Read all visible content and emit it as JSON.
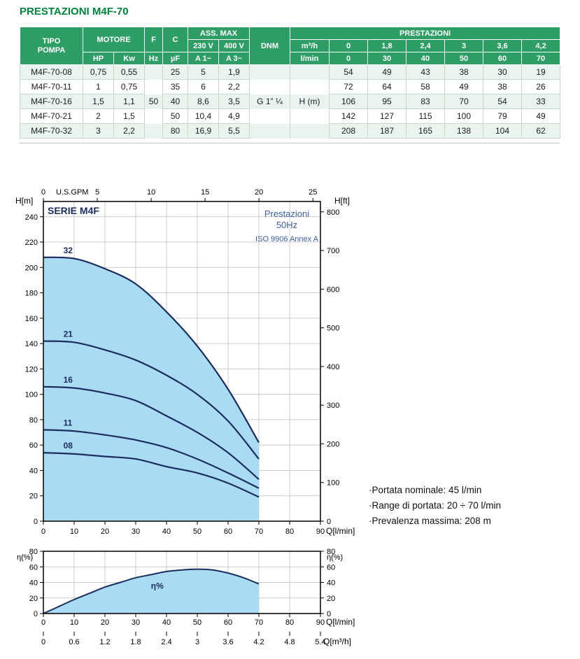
{
  "page": {
    "title": "PRESTAZIONI M4F-70"
  },
  "table": {
    "header": {
      "tipo_pompa": "TIPO\nPOMPA",
      "motore": "MOTORE",
      "hp": "HP",
      "kw": "Kw",
      "f": "F",
      "hz": "Hz",
      "c": "C",
      "uf": "µF",
      "ass_max": "ASS. MAX",
      "v230": "230 V",
      "v400": "400 V",
      "a1": "A 1~",
      "a3": "A 3~",
      "dnm": "DNM",
      "prestazioni": "PRESTAZIONI",
      "m3h": "m³/h",
      "lmin": "l/min",
      "m3h_vals": [
        "0",
        "1,8",
        "2,4",
        "3",
        "3,6",
        "4,2"
      ],
      "lmin_vals": [
        "0",
        "30",
        "40",
        "50",
        "60",
        "70"
      ]
    },
    "shared": {
      "hz": "50",
      "dnm": "G 1” ¼",
      "unit": "H (m)"
    },
    "rows": [
      {
        "tipo": "M4F-70-08",
        "hp": "0,75",
        "kw": "0,55",
        "c": "25",
        "a230": "5",
        "a400": "1,9",
        "vals": [
          "54",
          "49",
          "43",
          "38",
          "30",
          "19"
        ]
      },
      {
        "tipo": "M4F-70-11",
        "hp": "1",
        "kw": "0,75",
        "c": "35",
        "a230": "6",
        "a400": "2,2",
        "vals": [
          "72",
          "64",
          "58",
          "49",
          "38",
          "26"
        ]
      },
      {
        "tipo": "M4F-70-16",
        "hp": "1,5",
        "kw": "1,1",
        "c": "40",
        "a230": "8,6",
        "a400": "3,5",
        "vals": [
          "106",
          "95",
          "83",
          "70",
          "54",
          "33"
        ]
      },
      {
        "tipo": "M4F-70-21",
        "hp": "2",
        "kw": "1,5",
        "c": "50",
        "a230": "10,4",
        "a400": "4,9",
        "vals": [
          "142",
          "127",
          "115",
          "100",
          "79",
          "49"
        ]
      },
      {
        "tipo": "M4F-70-32",
        "hp": "3",
        "kw": "2,2",
        "c": "80",
        "a230": "16,9",
        "a400": "5,5",
        "vals": [
          "208",
          "187",
          "165",
          "138",
          "104",
          "62"
        ]
      }
    ]
  },
  "notes": [
    "·Portata nominale: 45 l/min",
    "·Range di portata: 20 ÷ 70 l/min",
    "·Prevalenza massima: 208 m"
  ],
  "colors": {
    "header_green": "#2f9e66",
    "title_green": "#00843d",
    "curve_navy": "#1b2d5e",
    "fill_blue": "#a9dcf2",
    "annot_blue": "#3b5fa5",
    "grid_gray": "#cccccc"
  },
  "chart_data": [
    {
      "type": "line",
      "title": "SERIE M4F",
      "annotations": [
        "Prestazioni",
        "50Hz",
        "ISO 9906 Annex A"
      ],
      "xlabel": "Q[l/min]",
      "ylabel_left": "H[m]",
      "ylabel_right": "H[ft]",
      "top_axis_label": "U.S.GPM",
      "x_max": 90,
      "y_max": 252,
      "x_ticks": [
        0,
        10,
        20,
        30,
        40,
        50,
        60,
        70,
        80,
        90
      ],
      "y_ticks": [
        0,
        20,
        40,
        60,
        80,
        100,
        120,
        140,
        160,
        180,
        200,
        220,
        240
      ],
      "ft_ticks": [
        0,
        100,
        200,
        300,
        400,
        500,
        600,
        700,
        800
      ],
      "ft_to_m": 0.3048,
      "gpm_ticks": [
        0,
        5,
        10,
        15,
        20,
        25
      ],
      "gpm_max": 25.7,
      "series": [
        {
          "name": "32",
          "x": [
            0,
            10,
            20,
            30,
            40,
            50,
            60,
            70
          ],
          "y": [
            208,
            207,
            199,
            187,
            165,
            138,
            104,
            62
          ]
        },
        {
          "name": "21",
          "x": [
            0,
            10,
            20,
            30,
            40,
            50,
            60,
            70
          ],
          "y": [
            142,
            141,
            135,
            127,
            115,
            100,
            79,
            49
          ]
        },
        {
          "name": "16",
          "x": [
            0,
            10,
            20,
            30,
            40,
            50,
            60,
            70
          ],
          "y": [
            106,
            105,
            101,
            95,
            83,
            70,
            54,
            33
          ]
        },
        {
          "name": "11",
          "x": [
            0,
            10,
            20,
            30,
            40,
            50,
            60,
            70
          ],
          "y": [
            72,
            71,
            68,
            64,
            58,
            49,
            38,
            26
          ]
        },
        {
          "name": "08",
          "x": [
            0,
            10,
            20,
            30,
            40,
            50,
            60,
            70
          ],
          "y": [
            54,
            53,
            51,
            49,
            43,
            38,
            30,
            19
          ]
        }
      ]
    },
    {
      "type": "area",
      "curve_label": "η%",
      "ylabel_left": "η(%)",
      "ylabel_right": "η(%)",
      "xlabel": "Q[l/min]",
      "xlabel2": "Q[m³/h]",
      "x_max": 90,
      "y_max": 80,
      "x_ticks": [
        0,
        10,
        20,
        30,
        40,
        50,
        60,
        70,
        80,
        90
      ],
      "y_ticks": [
        0,
        20,
        40,
        60,
        80
      ],
      "m3h_ticks": [
        "0",
        "0.6",
        "1.2",
        "1.8",
        "2.4",
        "3",
        "3.6",
        "4.2",
        "4.8",
        "5.4"
      ],
      "lmin_per_m3h": 16.6667,
      "x": [
        0,
        5,
        10,
        15,
        20,
        25,
        30,
        35,
        40,
        45,
        50,
        55,
        60,
        65,
        70
      ],
      "y": [
        0,
        9,
        18,
        26,
        34,
        40,
        46,
        50,
        54,
        56,
        57,
        56,
        52,
        46,
        38
      ]
    }
  ]
}
